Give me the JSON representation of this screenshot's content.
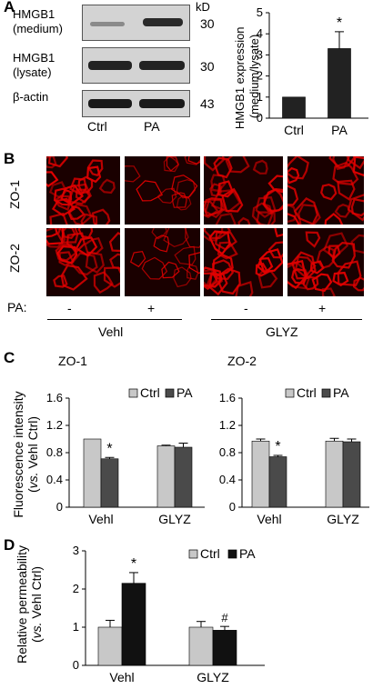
{
  "panels": {
    "A": "A",
    "B": "B",
    "C": "C",
    "D": "D"
  },
  "panel_a": {
    "kd_header": "kD",
    "rows": [
      {
        "label_line1": "HMGB1",
        "label_line2": "(medium)",
        "kd": "30"
      },
      {
        "label_line1": "HMGB1",
        "label_line2": "(lysate)",
        "kd": "30"
      },
      {
        "label_line1": "β-actin",
        "label_line2": "",
        "kd": "43"
      }
    ],
    "lanes": [
      "Ctrl",
      "PA"
    ]
  },
  "panel_b": {
    "row_labels": [
      "ZO-1",
      "ZO-2"
    ],
    "pa_label": "PA:",
    "pa_signs": [
      "-",
      "+",
      "-",
      "+"
    ],
    "groups": [
      "Vehl",
      "GLYZ"
    ],
    "colors": {
      "stain": "#e00000",
      "background": "#1a0000"
    }
  },
  "chart_data": [
    {
      "type": "bar",
      "id": "A-chart",
      "title": "",
      "ylabel": "HMGB1 expression (medium/lysate)",
      "ylabel_line1": "HMGB1 expression",
      "ylabel_line2": "(medium/lysate)",
      "categories": [
        "Ctrl",
        "PA"
      ],
      "values": [
        1.0,
        3.3
      ],
      "errors": [
        0,
        0.8
      ],
      "annotations": [
        "",
        "*"
      ],
      "ylim": [
        0,
        5
      ],
      "yticks": [
        "0",
        "1",
        "2",
        "3",
        "4",
        "5"
      ],
      "colors": [
        "#222222",
        "#222222"
      ]
    },
    {
      "type": "bar",
      "id": "C-ZO1",
      "title": "ZO-1",
      "ylabel": "Fluorescence intensity (vs. Vehl Ctrl)",
      "categories": [
        "Vehl",
        "GLYZ"
      ],
      "series": [
        {
          "name": "Ctrl",
          "values": [
            1.0,
            0.9
          ],
          "errors": [
            0,
            0.01
          ],
          "color": "#c8c8c8"
        },
        {
          "name": "PA",
          "values": [
            0.71,
            0.88
          ],
          "errors": [
            0.02,
            0.06
          ],
          "color": "#4a4a4a"
        }
      ],
      "annotations": {
        "PA": [
          "*",
          ""
        ]
      },
      "ylim": [
        0,
        1.6
      ],
      "yticks": [
        "0",
        "0.4",
        "0.8",
        "1.2",
        "1.6"
      ],
      "legend": "top-right"
    },
    {
      "type": "bar",
      "id": "C-ZO2",
      "title": "ZO-2",
      "categories": [
        "Vehl",
        "GLYZ"
      ],
      "series": [
        {
          "name": "Ctrl",
          "values": [
            0.97,
            0.97
          ],
          "errors": [
            0.03,
            0.04
          ],
          "color": "#c8c8c8"
        },
        {
          "name": "PA",
          "values": [
            0.74,
            0.96
          ],
          "errors": [
            0.02,
            0.04
          ],
          "color": "#4a4a4a"
        }
      ],
      "annotations": {
        "PA": [
          "*",
          ""
        ]
      },
      "ylim": [
        0,
        1.6
      ],
      "yticks": [
        "0",
        "0.4",
        "0.8",
        "1.2",
        "1.6"
      ],
      "legend": "top-right"
    },
    {
      "type": "bar",
      "id": "D",
      "title": "",
      "ylabel": "Relative permeability (vs. Vehl Ctrl)",
      "categories": [
        "Vehl",
        "GLYZ"
      ],
      "series": [
        {
          "name": "Ctrl",
          "values": [
            1.0,
            1.0
          ],
          "errors": [
            0.18,
            0.15
          ],
          "color": "#c8c8c8"
        },
        {
          "name": "PA",
          "values": [
            2.15,
            0.92
          ],
          "errors": [
            0.28,
            0.1
          ],
          "color": "#111111"
        }
      ],
      "annotations": {
        "PA": [
          "*",
          "#"
        ]
      },
      "ylim": [
        0,
        3
      ],
      "yticks": [
        "0",
        "1",
        "2",
        "3"
      ],
      "legend": "top-right"
    }
  ],
  "shared_ylabel_c": {
    "line1": "Fluorescence intensity",
    "line2_italic": "vs.",
    "line2_rest": " Vehl Ctrl)",
    "line2_open": "("
  },
  "ylabel_d": {
    "line1": "Relative permeability",
    "line2_open": "(",
    "line2_italic": "vs.",
    "line2_rest": " Vehl Ctrl)"
  }
}
